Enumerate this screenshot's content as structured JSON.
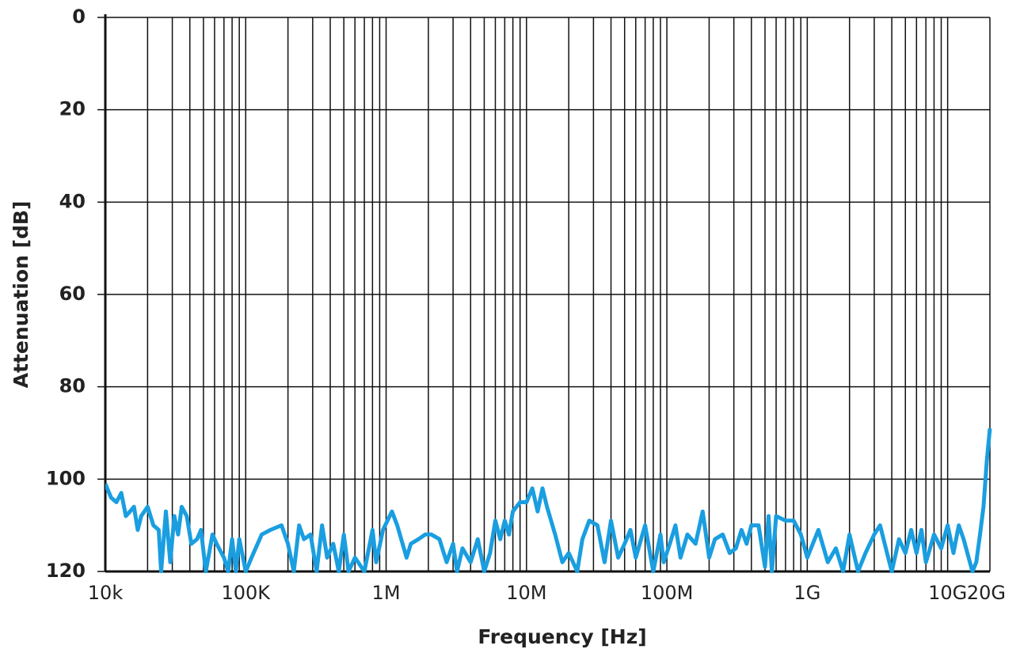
{
  "chart_data": {
    "type": "line",
    "x_label": "Frequency [Hz]",
    "y_label": "Attenuation [dB]",
    "x_scale": "log",
    "x_minor_grid": true,
    "grid": true,
    "color": "#1a9ee0",
    "xlim": [
      10000.0,
      20000000000.0
    ],
    "xticks": [
      {
        "value": 10000.0,
        "label": "10k"
      },
      {
        "value": 100000.0,
        "label": "100K"
      },
      {
        "value": 1000000.0,
        "label": "1M"
      },
      {
        "value": 10000000.0,
        "label": "10M"
      },
      {
        "value": 100000000.0,
        "label": "100M"
      },
      {
        "value": 1000000000.0,
        "label": "1G"
      },
      {
        "value": 10000000000.0,
        "label": "10G"
      },
      {
        "value": 20000000000.0,
        "label": "20G"
      }
    ],
    "ylim": [
      120,
      0
    ],
    "yticks": [
      0,
      20,
      40,
      60,
      80,
      100,
      120
    ],
    "x": [
      10000.0,
      11000.0,
      12000.0,
      13000.0,
      14000.0,
      15000.0,
      16000.0,
      17000.0,
      18000.0,
      20000.0,
      22000.0,
      24000.0,
      25000.0,
      27000.0,
      29000.0,
      31000.0,
      33000.0,
      35000.0,
      38000.0,
      41000.0,
      45000.0,
      48000.0,
      52000.0,
      58000.0,
      62000.0,
      70000.0,
      75000.0,
      80000.0,
      85000.0,
      90000.0,
      100000.0,
      110000.0,
      130000.0,
      150000.0,
      180000.0,
      200000.0,
      220000.0,
      240000.0,
      260000.0,
      290000.0,
      320000.0,
      350000.0,
      380000.0,
      420000.0,
      460000.0,
      500000.0,
      540000.0,
      600000.0,
      700000.0,
      800000.0,
      850000.0,
      950000.0,
      1100000.0,
      1200000.0,
      1400000.0,
      1500000.0,
      1700000.0,
      1900000.0,
      2100000.0,
      2400000.0,
      2700000.0,
      3000000.0,
      3200000.0,
      3500000.0,
      4000000.0,
      4500000.0,
      5000000.0,
      5500000.0,
      6000000.0,
      6500000.0,
      7000000.0,
      7500000.0,
      8000000.0,
      9000000.0,
      10000000.0,
      11000000.0,
      12000000.0,
      13000000.0,
      14000000.0,
      16000000.0,
      18000000.0,
      20000000.0,
      23000000.0,
      25000000.0,
      28000000.0,
      32000000.0,
      36000000.0,
      40000000.0,
      45000000.0,
      50000000.0,
      55000000.0,
      60000000.0,
      70000000.0,
      80000000.0,
      90000000.0,
      95000000.0,
      105000000.0,
      115000000.0,
      125000000.0,
      140000000.0,
      160000000.0,
      180000000.0,
      200000000.0,
      220000000.0,
      250000000.0,
      280000000.0,
      310000000.0,
      340000000.0,
      370000000.0,
      400000000.0,
      450000000.0,
      500000000.0,
      530000000.0,
      560000000.0,
      600000000.0,
      700000000.0,
      800000000.0,
      900000000.0,
      1000000000.0,
      1200000000.0,
      1400000000.0,
      1600000000.0,
      1800000000.0,
      2000000000.0,
      2300000000.0,
      2600000000.0,
      3000000000.0,
      3300000000.0,
      3700000000.0,
      4000000000.0,
      4500000000.0,
      5000000000.0,
      5500000000.0,
      6000000000.0,
      6500000000.0,
      7000000000.0,
      8000000000.0,
      9000000000.0,
      10000000000.0,
      11000000000.0,
      12000000000.0,
      13000000000.0,
      15000000000.0,
      16000000000.0,
      17000000000.0,
      18000000000.0,
      19000000000.0,
      20000000000.0
    ],
    "values": [
      101,
      104,
      105,
      103,
      108,
      107,
      106,
      111,
      108,
      106,
      110,
      111,
      120,
      107,
      118,
      108,
      112,
      106,
      108,
      114,
      113,
      111,
      120,
      112,
      114,
      117,
      120,
      113,
      120,
      113,
      120,
      117,
      112,
      111,
      110,
      114,
      120,
      110,
      113,
      112,
      120,
      110,
      117,
      114,
      120,
      112,
      120,
      117,
      120,
      111,
      118,
      111,
      107,
      110,
      117,
      114,
      113,
      112,
      112,
      113,
      118,
      114,
      120,
      115,
      118,
      113,
      120,
      116,
      109,
      113,
      109,
      112,
      107,
      105,
      105,
      102,
      107,
      102,
      106,
      112,
      118,
      116,
      120,
      113,
      109,
      110,
      118,
      109,
      117,
      114,
      111,
      117,
      110,
      120,
      112,
      118,
      114,
      110,
      117,
      112,
      114,
      107,
      117,
      113,
      112,
      116,
      115,
      111,
      114,
      110,
      110,
      119,
      108,
      120,
      108,
      109,
      109,
      112,
      117,
      111,
      118,
      115,
      120,
      112,
      120,
      116,
      112,
      110,
      116,
      120,
      113,
      116,
      111,
      116,
      111,
      118,
      112,
      115,
      110,
      116,
      110,
      113,
      120,
      118,
      112,
      106,
      96,
      89
    ]
  }
}
